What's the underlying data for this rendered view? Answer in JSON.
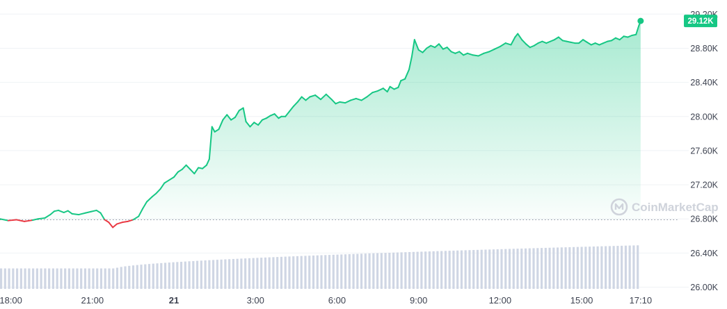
{
  "chart_data": {
    "type": "area",
    "title": "",
    "xlabel": "",
    "ylabel": "",
    "ylim": [
      25980,
      29300
    ],
    "y_ticks": [
      "26.00K",
      "26.40K",
      "26.80K",
      "27.20K",
      "27.60K",
      "28.00K",
      "28.40K",
      "28.80K",
      "29.20K"
    ],
    "y_tick_values": [
      26000,
      26400,
      26800,
      27200,
      27600,
      28000,
      28400,
      28800,
      29200
    ],
    "x_ticks": [
      {
        "label": "18:00",
        "hour": 18,
        "bold": false
      },
      {
        "label": "21:00",
        "hour": 21,
        "bold": false
      },
      {
        "label": "21",
        "hour": 24,
        "bold": true
      },
      {
        "label": "3:00",
        "hour": 27,
        "bold": false
      },
      {
        "label": "6:00",
        "hour": 30,
        "bold": false
      },
      {
        "label": "9:00",
        "hour": 33,
        "bold": false
      },
      {
        "label": "12:00",
        "hour": 36,
        "bold": false
      },
      {
        "label": "15:00",
        "hour": 39,
        "bold": false
      },
      {
        "label": "17:10",
        "hour": 41.17,
        "bold": false
      }
    ],
    "x_range_hours": [
      17.6,
      42.3
    ],
    "reference_price": 26790,
    "current_price_label": "29.12K",
    "current_price": 29120,
    "colors": {
      "up": "#16c784",
      "down": "#ea3943",
      "grid": "#eff2f5",
      "volume": "#cfd6e4",
      "badge": "#16c784"
    },
    "watermark": "CoinMarketCap",
    "series": [
      {
        "points": [
          [
            17.6,
            26800
          ],
          [
            17.9,
            26780
          ],
          [
            18.2,
            26790
          ],
          [
            18.5,
            26770
          ],
          [
            18.8,
            26785
          ],
          [
            19.0,
            26800
          ],
          [
            19.25,
            26810
          ],
          [
            19.45,
            26850
          ],
          [
            19.6,
            26890
          ],
          [
            19.75,
            26900
          ],
          [
            19.95,
            26875
          ],
          [
            20.1,
            26895
          ],
          [
            20.25,
            26860
          ],
          [
            20.5,
            26850
          ],
          [
            20.75,
            26870
          ],
          [
            20.95,
            26885
          ],
          [
            21.15,
            26900
          ],
          [
            21.3,
            26870
          ],
          [
            21.45,
            26790
          ],
          [
            21.6,
            26760
          ],
          [
            21.75,
            26700
          ],
          [
            21.9,
            26740
          ],
          [
            22.1,
            26760
          ],
          [
            22.3,
            26770
          ],
          [
            22.5,
            26790
          ],
          [
            22.7,
            26830
          ],
          [
            22.85,
            26920
          ],
          [
            23.0,
            27000
          ],
          [
            23.2,
            27060
          ],
          [
            23.35,
            27100
          ],
          [
            23.5,
            27150
          ],
          [
            23.65,
            27220
          ],
          [
            23.8,
            27250
          ],
          [
            24.0,
            27290
          ],
          [
            24.15,
            27350
          ],
          [
            24.3,
            27380
          ],
          [
            24.45,
            27430
          ],
          [
            24.6,
            27380
          ],
          [
            24.75,
            27330
          ],
          [
            24.9,
            27400
          ],
          [
            25.05,
            27390
          ],
          [
            25.2,
            27430
          ],
          [
            25.3,
            27500
          ],
          [
            25.4,
            27880
          ],
          [
            25.5,
            27820
          ],
          [
            25.65,
            27850
          ],
          [
            25.8,
            27960
          ],
          [
            25.95,
            28020
          ],
          [
            26.1,
            27960
          ],
          [
            26.25,
            27990
          ],
          [
            26.4,
            28070
          ],
          [
            26.55,
            28100
          ],
          [
            26.65,
            27940
          ],
          [
            26.8,
            27880
          ],
          [
            26.95,
            27930
          ],
          [
            27.1,
            27900
          ],
          [
            27.25,
            27960
          ],
          [
            27.4,
            27980
          ],
          [
            27.55,
            28010
          ],
          [
            27.7,
            28030
          ],
          [
            27.85,
            27980
          ],
          [
            27.95,
            28000
          ],
          [
            28.1,
            28000
          ],
          [
            28.25,
            28060
          ],
          [
            28.4,
            28120
          ],
          [
            28.55,
            28170
          ],
          [
            28.7,
            28230
          ],
          [
            28.85,
            28190
          ],
          [
            29.0,
            28230
          ],
          [
            29.2,
            28250
          ],
          [
            29.4,
            28200
          ],
          [
            29.6,
            28260
          ],
          [
            29.8,
            28200
          ],
          [
            29.95,
            28150
          ],
          [
            30.1,
            28170
          ],
          [
            30.3,
            28160
          ],
          [
            30.5,
            28190
          ],
          [
            30.7,
            28210
          ],
          [
            30.9,
            28190
          ],
          [
            31.1,
            28230
          ],
          [
            31.3,
            28280
          ],
          [
            31.5,
            28300
          ],
          [
            31.7,
            28330
          ],
          [
            31.85,
            28290
          ],
          [
            31.95,
            28350
          ],
          [
            32.1,
            28320
          ],
          [
            32.25,
            28340
          ],
          [
            32.35,
            28420
          ],
          [
            32.5,
            28440
          ],
          [
            32.65,
            28550
          ],
          [
            32.75,
            28700
          ],
          [
            32.85,
            28900
          ],
          [
            33.0,
            28780
          ],
          [
            33.15,
            28750
          ],
          [
            33.3,
            28800
          ],
          [
            33.45,
            28830
          ],
          [
            33.6,
            28810
          ],
          [
            33.75,
            28850
          ],
          [
            33.9,
            28790
          ],
          [
            34.05,
            28810
          ],
          [
            34.2,
            28760
          ],
          [
            34.35,
            28740
          ],
          [
            34.5,
            28760
          ],
          [
            34.65,
            28720
          ],
          [
            34.8,
            28740
          ],
          [
            35.0,
            28720
          ],
          [
            35.2,
            28710
          ],
          [
            35.4,
            28740
          ],
          [
            35.6,
            28760
          ],
          [
            35.8,
            28790
          ],
          [
            36.0,
            28820
          ],
          [
            36.2,
            28860
          ],
          [
            36.4,
            28840
          ],
          [
            36.55,
            28930
          ],
          [
            36.65,
            28970
          ],
          [
            36.8,
            28900
          ],
          [
            36.95,
            28850
          ],
          [
            37.1,
            28810
          ],
          [
            37.25,
            28830
          ],
          [
            37.4,
            28860
          ],
          [
            37.55,
            28880
          ],
          [
            37.7,
            28860
          ],
          [
            37.85,
            28880
          ],
          [
            38.0,
            28900
          ],
          [
            38.15,
            28930
          ],
          [
            38.3,
            28890
          ],
          [
            38.45,
            28880
          ],
          [
            38.6,
            28870
          ],
          [
            38.75,
            28860
          ],
          [
            38.9,
            28860
          ],
          [
            39.05,
            28900
          ],
          [
            39.2,
            28870
          ],
          [
            39.35,
            28840
          ],
          [
            39.5,
            28860
          ],
          [
            39.65,
            28840
          ],
          [
            39.8,
            28860
          ],
          [
            39.95,
            28880
          ],
          [
            40.1,
            28890
          ],
          [
            40.25,
            28920
          ],
          [
            40.4,
            28900
          ],
          [
            40.55,
            28940
          ],
          [
            40.7,
            28930
          ],
          [
            40.85,
            28950
          ],
          [
            41.0,
            28960
          ],
          [
            41.1,
            29060
          ],
          [
            41.17,
            29120
          ]
        ]
      }
    ],
    "volume": {
      "start_hour": 17.6,
      "end_hour": 41.17,
      "bars": 160,
      "min_level": 0.46,
      "max_level": 0.98
    }
  }
}
